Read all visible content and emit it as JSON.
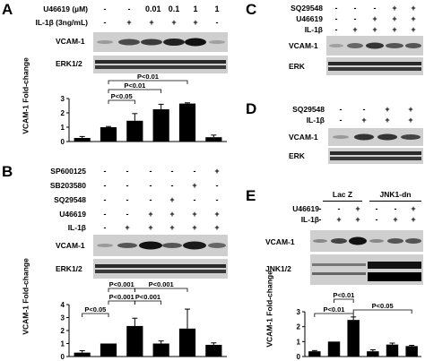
{
  "panels": {
    "A": {
      "label": "A",
      "conditions": [
        {
          "name": "U46619 (µM)",
          "values": [
            "-",
            "-",
            "0.01",
            "0.1",
            "1",
            "1"
          ]
        },
        {
          "name": "IL-1β (3ng/mL)",
          "values": [
            "-",
            "+",
            "+",
            "+",
            "+",
            "-"
          ]
        }
      ],
      "blots": [
        "VCAM-1",
        "ERK1/2"
      ],
      "stats": [
        "P<0.05",
        "P<0.01",
        "P<0.01"
      ],
      "chart_data": {
        "type": "bar",
        "ylabel": "VCAM-1 Fold-change",
        "ylim": [
          0,
          3
        ],
        "yticks": [
          "0",
          "1",
          "2",
          "3"
        ],
        "values": [
          0.25,
          1.0,
          1.45,
          2.25,
          2.65,
          0.3
        ],
        "errors": [
          0.1,
          0.05,
          0.5,
          0.35,
          0.05,
          0.15
        ]
      }
    },
    "B": {
      "label": "B",
      "conditions": [
        {
          "name": "SP600125",
          "values": [
            "-",
            "-",
            "-",
            "-",
            "-",
            "+"
          ]
        },
        {
          "name": "SB203580",
          "values": [
            "-",
            "-",
            "-",
            "-",
            "+",
            "-"
          ]
        },
        {
          "name": "SQ29548",
          "values": [
            "-",
            "-",
            "-",
            "+",
            "-",
            "-"
          ]
        },
        {
          "name": "U46619",
          "values": [
            "-",
            "-",
            "+",
            "+",
            "+",
            "+"
          ]
        },
        {
          "name": "IL-1β",
          "values": [
            "-",
            "+",
            "+",
            "+",
            "+",
            "+"
          ]
        }
      ],
      "blots": [
        "VCAM-1",
        "ERK1/2"
      ],
      "stats": [
        "P<0.001",
        "P<0.001",
        "P<0.05",
        "P<0.001",
        "P<0.001"
      ],
      "chart_data": {
        "type": "bar",
        "ylabel": "VCAM-1 Fold-change",
        "ylim": [
          0,
          4
        ],
        "yticks": [
          "0",
          "1",
          "2",
          "3",
          "4"
        ],
        "values": [
          0.3,
          1.0,
          2.35,
          1.0,
          2.15,
          0.9
        ],
        "errors": [
          0.15,
          0.0,
          0.6,
          0.2,
          1.5,
          0.15
        ]
      }
    },
    "C": {
      "label": "C",
      "conditions": [
        {
          "name": "SQ29548",
          "values": [
            "-",
            "-",
            "-",
            "+",
            "+"
          ]
        },
        {
          "name": "U46619",
          "values": [
            "-",
            "-",
            "+",
            "+",
            "+"
          ]
        },
        {
          "name": "IL-1β",
          "values": [
            "-",
            "+",
            "+",
            "+",
            "+"
          ]
        }
      ],
      "blots": [
        "VCAM-1",
        "ERK"
      ]
    },
    "D": {
      "label": "D",
      "conditions": [
        {
          "name": "SQ29548",
          "values": [
            "-",
            "-",
            "+",
            "+"
          ]
        },
        {
          "name": "IL-1β",
          "values": [
            "-",
            "+",
            "+",
            "+"
          ]
        }
      ],
      "blots": [
        "VCAM-1",
        "ERK"
      ]
    },
    "E": {
      "label": "E",
      "groups": [
        "Lac Z",
        "JNK1-dn"
      ],
      "conditions": [
        {
          "name": "U46619",
          "values": [
            "-",
            "-",
            "+",
            "-",
            "-",
            "+"
          ]
        },
        {
          "name": "IL-1β",
          "values": [
            "-",
            "+",
            "+",
            "-",
            "+",
            "+"
          ]
        }
      ],
      "blots": [
        "VCAM-1",
        "JNK1/2"
      ],
      "stats": [
        "P<0.01",
        "P<0.01",
        "P<0.05"
      ],
      "chart_data": {
        "type": "bar",
        "ylabel": "VCAM-1 Fold-change",
        "ylim": [
          0,
          3
        ],
        "yticks": [
          "0",
          "1",
          "2",
          "3"
        ],
        "values": [
          0.35,
          1.0,
          2.45,
          0.35,
          0.8,
          0.7
        ],
        "errors": [
          0.05,
          0.0,
          0.2,
          0.1,
          0.1,
          0.05
        ]
      }
    }
  }
}
